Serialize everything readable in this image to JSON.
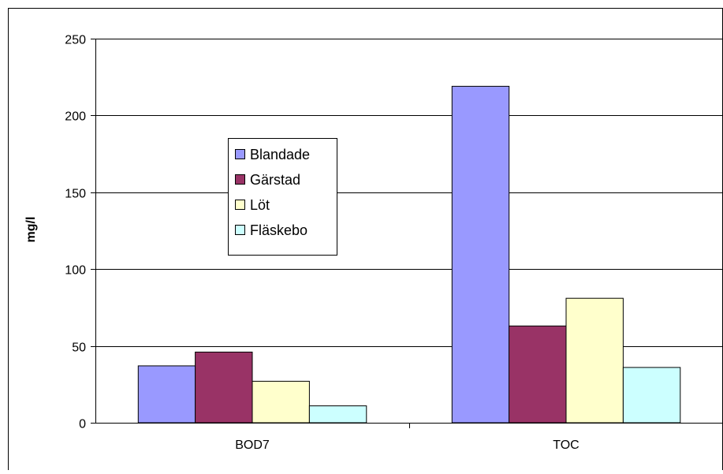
{
  "chart_data": {
    "type": "bar",
    "title": "",
    "xlabel": "",
    "ylabel": "mg/l",
    "ylim": [
      0,
      250
    ],
    "yticks": [
      0,
      50,
      100,
      150,
      200,
      250
    ],
    "grid": true,
    "legend_position": "upper-left-center",
    "categories": [
      "BOD7",
      "TOC"
    ],
    "series": [
      {
        "name": "Blandade",
        "color": "#9999ff",
        "values": [
          37,
          219
        ]
      },
      {
        "name": "Gärstad",
        "color": "#993366",
        "values": [
          46,
          63
        ]
      },
      {
        "name": "Löt",
        "color": "#ffffcc",
        "values": [
          27,
          81
        ]
      },
      {
        "name": "Fläskebo",
        "color": "#ccffff",
        "values": [
          11,
          36
        ]
      }
    ]
  }
}
